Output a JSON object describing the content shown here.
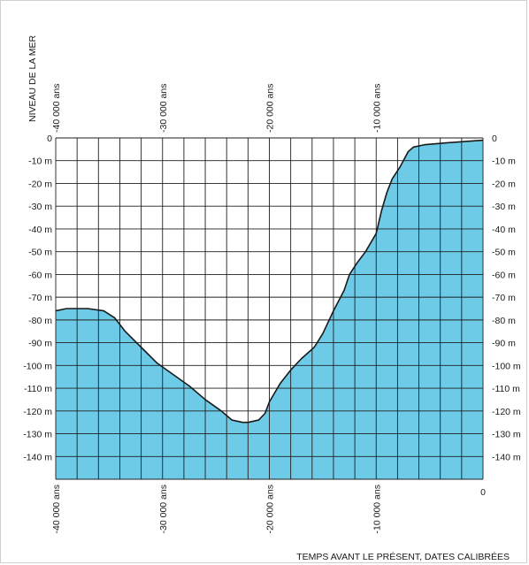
{
  "chart_data": {
    "type": "area",
    "ylabel": "NIVEAU DE LA MER",
    "xlabel": "TEMPS AVANT LE PRÉSENT, DATES CALIBRÉES",
    "xlim": [
      -40000,
      0
    ],
    "ylim": [
      -150,
      0
    ],
    "x_ticks_labels": [
      {
        "value": -40000,
        "label": "-40 000 ans"
      },
      {
        "value": -30000,
        "label": "-30 000 ans"
      },
      {
        "value": -20000,
        "label": "-20 000 ans"
      },
      {
        "value": -10000,
        "label": "-10 000 ans"
      },
      {
        "value": 0,
        "label": "0"
      }
    ],
    "y_ticks_labels": [
      {
        "value": 0,
        "label": "0"
      },
      {
        "value": -10,
        "label": "-10 m"
      },
      {
        "value": -20,
        "label": "-20 m"
      },
      {
        "value": -30,
        "label": "-30 m"
      },
      {
        "value": -40,
        "label": "-40 m"
      },
      {
        "value": -50,
        "label": "-50 m"
      },
      {
        "value": -60,
        "label": "-60 m"
      },
      {
        "value": -70,
        "label": "-70 m"
      },
      {
        "value": -80,
        "label": "-80 m"
      },
      {
        "value": -90,
        "label": "-90 m"
      },
      {
        "value": -100,
        "label": "-100 m"
      },
      {
        "value": -110,
        "label": "-110 m"
      },
      {
        "value": -120,
        "label": "-120 m"
      },
      {
        "value": -130,
        "label": "-130 m"
      },
      {
        "value": -140,
        "label": "-140 m"
      }
    ],
    "grid": true,
    "grid_x_step": 2000,
    "grid_y_step": 10,
    "fill_color": "#6dcbe8",
    "line_color": "#1a1a1a",
    "points": [
      {
        "x": -40000,
        "y": -76
      },
      {
        "x": -39000,
        "y": -75
      },
      {
        "x": -37000,
        "y": -75
      },
      {
        "x": -35500,
        "y": -76
      },
      {
        "x": -34500,
        "y": -79
      },
      {
        "x": -33500,
        "y": -85
      },
      {
        "x": -32000,
        "y": -92
      },
      {
        "x": -30500,
        "y": -99
      },
      {
        "x": -29000,
        "y": -104
      },
      {
        "x": -27500,
        "y": -109
      },
      {
        "x": -26000,
        "y": -115
      },
      {
        "x": -24500,
        "y": -120
      },
      {
        "x": -23500,
        "y": -124
      },
      {
        "x": -22500,
        "y": -125
      },
      {
        "x": -22000,
        "y": -125
      },
      {
        "x": -21000,
        "y": -124
      },
      {
        "x": -20400,
        "y": -121
      },
      {
        "x": -20000,
        "y": -116
      },
      {
        "x": -19000,
        "y": -108
      },
      {
        "x": -18000,
        "y": -102
      },
      {
        "x": -17000,
        "y": -97
      },
      {
        "x": -15800,
        "y": -92
      },
      {
        "x": -15000,
        "y": -86
      },
      {
        "x": -14000,
        "y": -76
      },
      {
        "x": -13000,
        "y": -67
      },
      {
        "x": -12500,
        "y": -60
      },
      {
        "x": -11800,
        "y": -55
      },
      {
        "x": -11000,
        "y": -50
      },
      {
        "x": -10000,
        "y": -42
      },
      {
        "x": -9500,
        "y": -32
      },
      {
        "x": -9000,
        "y": -24
      },
      {
        "x": -8500,
        "y": -18
      },
      {
        "x": -7800,
        "y": -13
      },
      {
        "x": -7000,
        "y": -6
      },
      {
        "x": -6500,
        "y": -4
      },
      {
        "x": -5500,
        "y": -3
      },
      {
        "x": -3000,
        "y": -2
      },
      {
        "x": 0,
        "y": -1
      }
    ]
  }
}
